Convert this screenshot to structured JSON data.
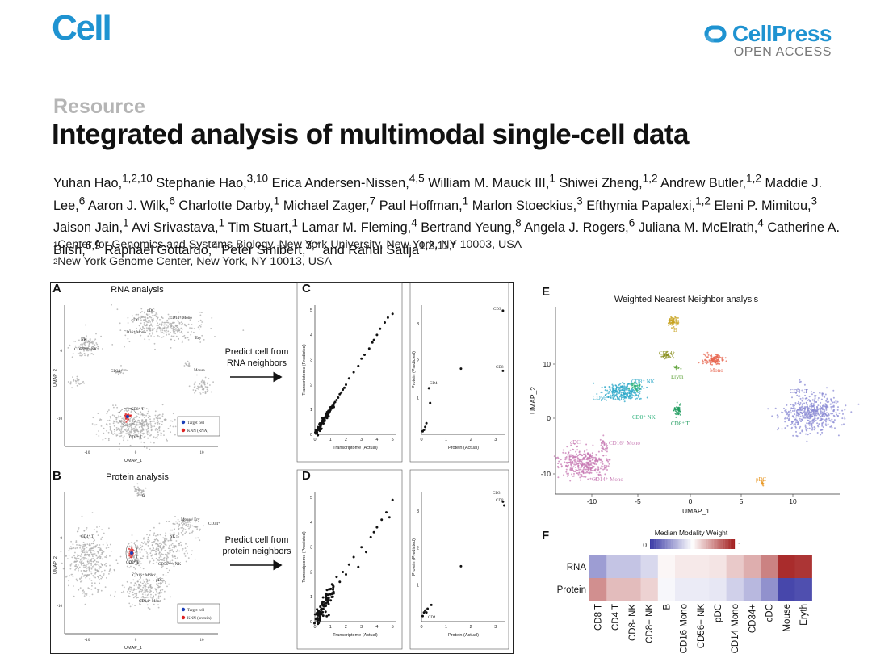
{
  "header": {
    "journal": "Cell",
    "publisher": "CellPress",
    "access": "OPEN ACCESS"
  },
  "article": {
    "type": "Resource",
    "title": "Integrated analysis of multimodal single-cell data"
  },
  "authors": [
    {
      "name": "Yuhan Hao,",
      "sup": "1,2,10"
    },
    {
      "name": "Stephanie Hao,",
      "sup": "3,10"
    },
    {
      "name": "Erica Andersen-Nissen,",
      "sup": "4,5"
    },
    {
      "name": "William M. Mauck III,",
      "sup": "1"
    },
    {
      "name": "Shiwei Zheng,",
      "sup": "1,2"
    },
    {
      "name": "Andrew Butler,",
      "sup": "1,2"
    },
    {
      "name": "Maddie J. Lee,",
      "sup": "6"
    },
    {
      "name": "Aaron J. Wilk,",
      "sup": "6"
    },
    {
      "name": "Charlotte Darby,",
      "sup": "1"
    },
    {
      "name": "Michael Zager,",
      "sup": "7"
    },
    {
      "name": "Paul Hoffman,",
      "sup": "1"
    },
    {
      "name": "Marlon Stoeckius,",
      "sup": "3"
    },
    {
      "name": "Efthymia Papalexi,",
      "sup": "1,2"
    },
    {
      "name": "Eleni P. Mimitou,",
      "sup": "3"
    },
    {
      "name": "Jaison Jain,",
      "sup": "1"
    },
    {
      "name": "Avi Srivastava,",
      "sup": "1"
    },
    {
      "name": "Tim Stuart,",
      "sup": "1"
    },
    {
      "name": "Lamar M. Fleming,",
      "sup": "4"
    },
    {
      "name": "Bertrand Yeung,",
      "sup": "8"
    },
    {
      "name": "Angela J. Rogers,",
      "sup": "6"
    },
    {
      "name": "Juliana M. McElrath,",
      "sup": "4"
    },
    {
      "name": "Catherine A. Blish,",
      "sup": "6,9"
    },
    {
      "name": "Raphael Gottardo,",
      "sup": "4"
    },
    {
      "name": "Peter Smibert,",
      "sup": "3,*"
    },
    {
      "name": "and Rahul Satija",
      "sup": "1,2,11,*"
    }
  ],
  "affiliations": [
    {
      "num": "1",
      "text": "Center for Genomics and Systems Biology, New York University, New York, NY 10003, USA"
    },
    {
      "num": "2",
      "text": "New York Genome Center, New York, NY 10013, USA"
    }
  ],
  "figure": {
    "panels": {
      "A": {
        "letter": "A",
        "title": "RNA analysis",
        "xlabel": "UMAP_1",
        "ylabel": "UMAP_2",
        "legend": [
          "Target cell",
          "KNN (RNA)"
        ],
        "xticks": [
          "-10",
          "0",
          "10"
        ],
        "yticks": [
          "0",
          "-10"
        ],
        "cluster_labels": [
          "pDC",
          "cDC",
          "CD14⁺ Mono",
          "CD16⁺ Mono",
          "Ery",
          "NK",
          "CD56ᵇʳᴵᵍʰᵗ NK",
          "CD34⁺",
          "Mouse",
          "CD8⁺ T",
          "CD4⁺ T"
        ]
      },
      "B": {
        "letter": "B",
        "title": "Protein analysis",
        "xlabel": "UMAP_1",
        "ylabel": "UMAP_2",
        "legend": [
          "Target cell",
          "KNN (protein)"
        ],
        "xticks": [
          "-10",
          "0",
          "10"
        ],
        "yticks": [
          "0",
          "-10"
        ],
        "cluster_labels": [
          "B",
          "Mouse/ Ery",
          "CD34⁺",
          "NK",
          "CD4⁺ T",
          "CD8⁺ T",
          "CD56ᵇʳᴵᵍʰᵗ NK",
          "pDC",
          "CD16⁺ Mono",
          "CD14⁺ Mono"
        ]
      },
      "C": {
        "letter": "C",
        "xlabel": "Transcriptome (Actual)",
        "ylabel": "Transcriptome (Predicted)",
        "xlabel2": "Protein (Actual)",
        "ylabel2": "Protein (Predicted)",
        "xticks": [
          "0",
          "1",
          "2",
          "3",
          "4",
          "5"
        ],
        "yticks": [
          "0",
          "1",
          "2",
          "3",
          "4",
          "5"
        ],
        "xticks2": [
          "0",
          "1",
          "2",
          "3"
        ],
        "yticks2": [
          "1",
          "2",
          "3"
        ],
        "point_labels": [
          "CD3",
          "CD8",
          "CD4"
        ]
      },
      "D": {
        "letter": "D",
        "xlabel": "Transcriptome (Actual)",
        "ylabel": "Transcriptome (Predicted)",
        "xlabel2": "Protein (Actual)",
        "ylabel2": "Protein (Predicted)",
        "xticks": [
          "0",
          "1",
          "2",
          "3",
          "4",
          "5"
        ],
        "yticks": [
          "0",
          "1",
          "2",
          "3",
          "4",
          "5"
        ],
        "xticks2": [
          "0",
          "1",
          "2",
          "3"
        ],
        "yticks2": [
          "1",
          "2",
          "3"
        ],
        "point_labels": [
          "CD3",
          "CD8",
          "CD4"
        ]
      },
      "E": {
        "letter": "E",
        "title": "Weighted Nearest Neighbor analysis",
        "xlabel": "UMAP_1",
        "ylabel": "UMAP_2",
        "xticks": [
          "-10",
          "-5",
          "0",
          "5",
          "10"
        ],
        "yticks": [
          "10",
          "0",
          "-10"
        ],
        "cluster_labels": [
          "B",
          "CD34⁺",
          "Mono",
          "Eryth",
          "CD8⁺ NK",
          "CD56ᵇʳᴵᵍʰᵗ NK",
          "CD8⁺ NK",
          "CD8⁺ T",
          "CD4⁺ T",
          "cDC",
          "CD16⁺ Mono",
          "CD14⁺ Mono",
          "pDC"
        ]
      },
      "F": {
        "letter": "F",
        "title": "Median Modality Weight",
        "scale_min": "0",
        "scale_max": "1"
      }
    },
    "arrow_captions": {
      "top": [
        "Predict cell from",
        "RNA neighbors"
      ],
      "bottom": [
        "Predict cell from",
        "protein neighbors"
      ]
    }
  },
  "chart_data": [
    {
      "type": "heatmap",
      "title": "Median Modality Weight",
      "rows": [
        "RNA",
        "Protein"
      ],
      "columns": [
        "CD8 T",
        "CD4 T",
        "CD8- NK",
        "CD8+ NK",
        "B",
        "CD16 Mono",
        "CD56+ NK",
        "pDC",
        "CD14 Mono",
        "CD34+",
        "cDC",
        "Mouse",
        "Eryth"
      ],
      "values": [
        [
          0.25,
          0.35,
          0.35,
          0.4,
          0.52,
          0.55,
          0.55,
          0.56,
          0.62,
          0.68,
          0.78,
          0.97,
          0.95
        ],
        [
          0.75,
          0.65,
          0.65,
          0.6,
          0.48,
          0.45,
          0.45,
          0.44,
          0.38,
          0.32,
          0.22,
          0.03,
          0.05
        ]
      ],
      "scale_range": [
        0,
        1
      ],
      "colors": {
        "low": "#3b3ba6",
        "mid": "#ffffff",
        "high": "#a31f1f"
      }
    },
    {
      "type": "scatter",
      "panel": "C-left",
      "xlabel": "Transcriptome (Actual)",
      "ylabel": "Transcriptome (Predicted)",
      "xlim": [
        0,
        5.2
      ],
      "ylim": [
        0,
        5.2
      ],
      "x": [
        0.05,
        0.1,
        0.15,
        0.2,
        0.25,
        0.3,
        0.35,
        0.4,
        0.5,
        0.55,
        0.6,
        0.7,
        0.8,
        0.9,
        1.0,
        1.1,
        1.2,
        1.3,
        1.4,
        1.5,
        1.6,
        1.7,
        1.8,
        1.9,
        2.0,
        2.2,
        2.5,
        2.8,
        3.0,
        3.2,
        3.5,
        3.7,
        3.8,
        4.0,
        4.2,
        4.5,
        4.7,
        5.0
      ],
      "y": [
        0.05,
        0.12,
        0.15,
        0.2,
        0.28,
        0.3,
        0.33,
        0.42,
        0.5,
        0.53,
        0.62,
        0.7,
        0.78,
        0.88,
        0.98,
        1.08,
        1.18,
        1.3,
        1.38,
        1.48,
        1.62,
        1.68,
        1.8,
        1.88,
        2.0,
        2.25,
        2.5,
        2.75,
        3.05,
        3.2,
        3.45,
        3.7,
        3.8,
        4.0,
        4.25,
        4.5,
        4.7,
        4.85
      ]
    },
    {
      "type": "scatter",
      "panel": "C-right",
      "xlabel": "Protein (Actual)",
      "ylabel": "Protein (Predicted)",
      "xlim": [
        0,
        3.4
      ],
      "ylim": [
        0,
        3.5
      ],
      "x": [
        0.05,
        0.1,
        0.15,
        0.2,
        0.3,
        0.35,
        1.6,
        3.3,
        3.3
      ],
      "y": [
        0.08,
        0.12,
        0.2,
        0.3,
        1.25,
        0.85,
        1.78,
        3.35,
        1.72
      ]
    },
    {
      "type": "scatter",
      "panel": "D-left",
      "xlabel": "Transcriptome (Actual)",
      "ylabel": "Transcriptome (Predicted)",
      "xlim": [
        0,
        5.2
      ],
      "ylim": [
        0,
        5.2
      ],
      "x": [
        0.05,
        0.1,
        0.15,
        0.2,
        0.3,
        0.35,
        0.4,
        0.5,
        0.6,
        0.7,
        0.8,
        0.9,
        1.0,
        1.1,
        1.2,
        1.4,
        1.6,
        1.8,
        2.0,
        2.2,
        2.5,
        2.8,
        3.0,
        3.3,
        3.6,
        3.8,
        4.0,
        4.3,
        4.6,
        4.8,
        5.0
      ],
      "y": [
        0.1,
        0.3,
        0.15,
        0.45,
        0.35,
        0.6,
        0.5,
        0.8,
        0.7,
        1.0,
        0.9,
        1.3,
        1.1,
        1.5,
        1.2,
        1.8,
        1.6,
        2.0,
        1.9,
        2.3,
        2.6,
        2.2,
        3.0,
        2.8,
        3.4,
        3.6,
        3.8,
        4.1,
        4.4,
        4.2,
        4.9
      ]
    },
    {
      "type": "scatter",
      "panel": "D-right",
      "xlabel": "Protein (Actual)",
      "ylabel": "Protein (Predicted)",
      "xlim": [
        0,
        3.4
      ],
      "ylim": [
        0,
        3.5
      ],
      "x": [
        0.05,
        0.1,
        0.15,
        0.2,
        0.25,
        0.4,
        1.6,
        3.3,
        3.35
      ],
      "y": [
        0.15,
        0.25,
        0.3,
        0.25,
        0.35,
        0.45,
        1.5,
        3.25,
        3.15
      ]
    }
  ]
}
